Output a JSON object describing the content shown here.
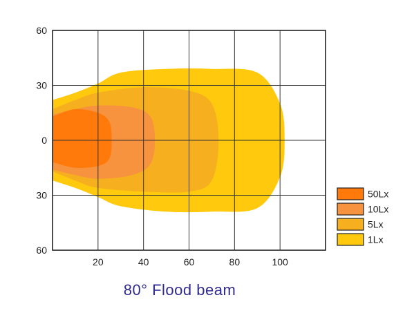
{
  "chart_data": {
    "type": "area",
    "title": "80° Flood beam",
    "xlabel": "",
    "ylabel": "",
    "xlim": [
      0,
      120
    ],
    "ylim": [
      -60,
      60
    ],
    "x_ticks": [
      "20",
      "40",
      "60",
      "80",
      "100"
    ],
    "y_ticks": [
      "60",
      "30",
      "0",
      "30",
      "60"
    ],
    "grid": true,
    "legend_position": "right",
    "series": [
      {
        "name": "1Lx",
        "color": "#FFC90E",
        "points": [
          [
            0,
            22
          ],
          [
            10,
            26
          ],
          [
            20,
            31
          ],
          [
            30,
            37
          ],
          [
            50,
            39
          ],
          [
            70,
            39
          ],
          [
            90,
            37
          ],
          [
            100,
            20
          ],
          [
            102,
            0
          ],
          [
            100,
            -20
          ],
          [
            90,
            -37
          ],
          [
            70,
            -39
          ],
          [
            50,
            -39
          ],
          [
            30,
            -36
          ],
          [
            20,
            -31
          ],
          [
            10,
            -26
          ],
          [
            0,
            -22
          ]
        ]
      },
      {
        "name": "5Lx",
        "color": "#F6AF1E",
        "points": [
          [
            0,
            17
          ],
          [
            10,
            22
          ],
          [
            20,
            26
          ],
          [
            40,
            29
          ],
          [
            60,
            27
          ],
          [
            70,
            20
          ],
          [
            73,
            0
          ],
          [
            70,
            -22
          ],
          [
            60,
            -28
          ],
          [
            40,
            -28
          ],
          [
            20,
            -26
          ],
          [
            10,
            -22
          ],
          [
            0,
            -17
          ]
        ]
      },
      {
        "name": "10Lx",
        "color": "#F7923E",
        "points": [
          [
            0,
            14
          ],
          [
            10,
            17
          ],
          [
            20,
            19
          ],
          [
            35,
            18
          ],
          [
            43,
            13
          ],
          [
            45,
            0
          ],
          [
            43,
            -13
          ],
          [
            35,
            -19
          ],
          [
            20,
            -21
          ],
          [
            10,
            -19
          ],
          [
            0,
            -16
          ]
        ]
      },
      {
        "name": "50Lx",
        "color": "#FF7A0A",
        "points": [
          [
            0,
            13
          ],
          [
            10,
            17
          ],
          [
            20,
            15
          ],
          [
            25,
            10
          ],
          [
            26,
            0
          ],
          [
            25,
            -10
          ],
          [
            20,
            -14
          ],
          [
            10,
            -15
          ],
          [
            0,
            -12
          ]
        ]
      }
    ]
  }
}
